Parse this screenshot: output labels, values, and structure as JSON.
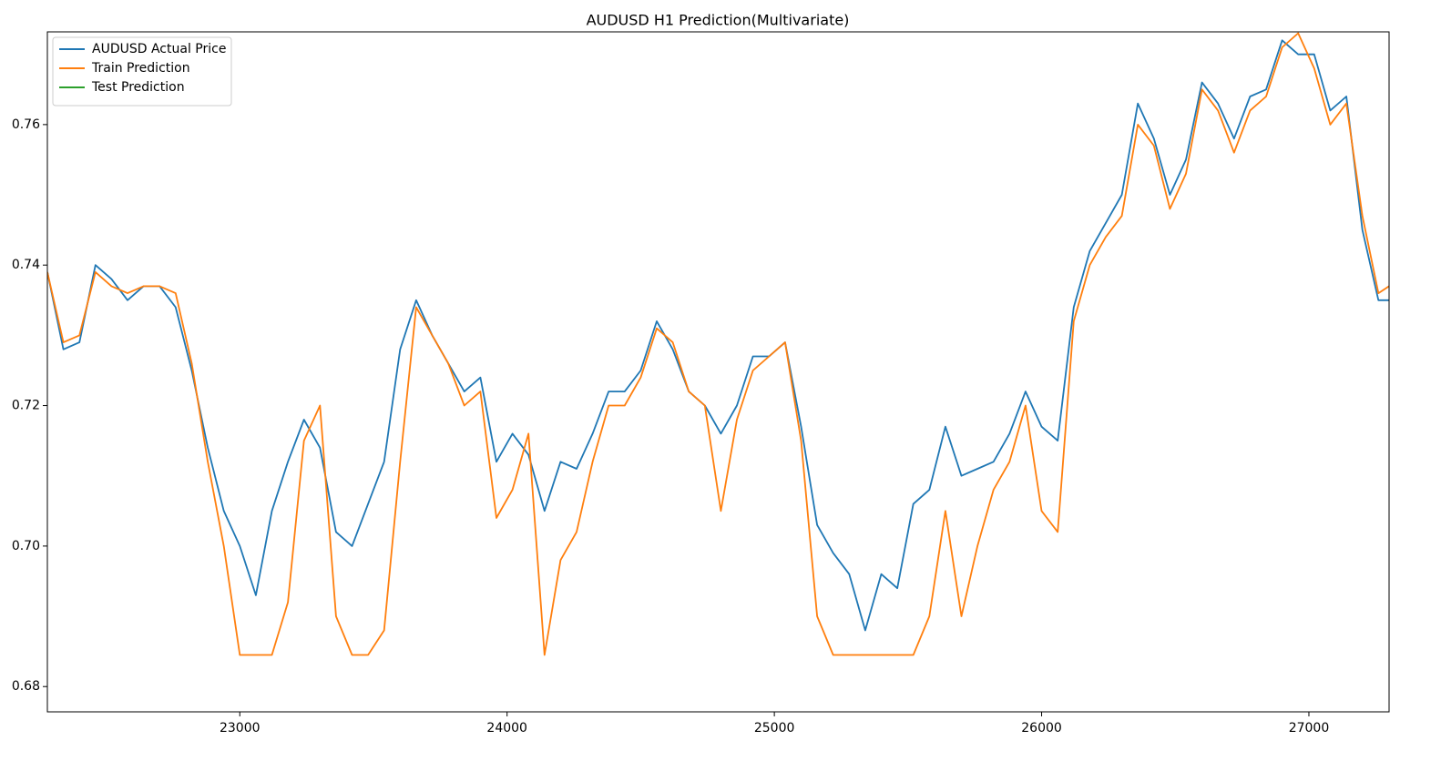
{
  "chart_data": {
    "type": "line",
    "title": "AUDUSD H1 Prediction(Multivariate)",
    "x": [
      22280,
      22340,
      22400,
      22460,
      22520,
      22580,
      22640,
      22700,
      22760,
      22820,
      22880,
      22940,
      23000,
      23060,
      23120,
      23180,
      23240,
      23300,
      23360,
      23420,
      23480,
      23540,
      23600,
      23660,
      23720,
      23780,
      23840,
      23900,
      23960,
      24020,
      24080,
      24140,
      24200,
      24260,
      24320,
      24380,
      24440,
      24500,
      24560,
      24620,
      24680,
      24740,
      24800,
      24860,
      24920,
      24980,
      25040,
      25100,
      25160,
      25220,
      25280,
      25340,
      25400,
      25460,
      25520,
      25580,
      25640,
      25700,
      25760,
      25820,
      25880,
      25940,
      26000,
      26060,
      26120,
      26180,
      26240,
      26300,
      26360,
      26420,
      26480,
      26540,
      26600,
      26660,
      26720,
      26780,
      26840,
      26900,
      26960,
      27020,
      27080,
      27140,
      27200,
      27260,
      27300
    ],
    "series": [
      {
        "name": "AUDUSD Actual Price",
        "color": "#1f77b4",
        "values": [
          0.739,
          0.728,
          0.729,
          0.74,
          0.738,
          0.735,
          0.737,
          0.737,
          0.734,
          0.725,
          0.714,
          0.705,
          0.7,
          0.693,
          0.705,
          0.712,
          0.718,
          0.714,
          0.702,
          0.7,
          0.706,
          0.712,
          0.728,
          0.735,
          0.73,
          0.726,
          0.722,
          0.724,
          0.712,
          0.716,
          0.713,
          0.705,
          0.712,
          0.711,
          0.716,
          0.722,
          0.722,
          0.725,
          0.732,
          0.728,
          0.722,
          0.72,
          0.716,
          0.72,
          0.727,
          0.727,
          0.729,
          0.717,
          0.703,
          0.699,
          0.696,
          0.688,
          0.696,
          0.694,
          0.706,
          0.708,
          0.717,
          0.71,
          0.711,
          0.712,
          0.716,
          0.722,
          0.717,
          0.715,
          0.734,
          0.742,
          0.746,
          0.75,
          0.763,
          0.758,
          0.75,
          0.755,
          0.766,
          0.763,
          0.758,
          0.764,
          0.765,
          0.772,
          0.77,
          0.77,
          0.762,
          0.764,
          0.745,
          0.735,
          0.735
        ]
      },
      {
        "name": "Train Prediction",
        "color": "#ff7f0e",
        "values": [
          0.739,
          0.729,
          0.73,
          0.739,
          0.737,
          0.736,
          0.737,
          0.737,
          0.736,
          0.726,
          0.712,
          0.7,
          0.6845,
          0.6845,
          0.6845,
          0.692,
          0.715,
          0.72,
          0.69,
          0.6845,
          0.6845,
          0.688,
          0.712,
          0.734,
          0.73,
          0.726,
          0.72,
          0.722,
          0.704,
          0.708,
          0.716,
          0.6845,
          0.698,
          0.702,
          0.712,
          0.72,
          0.72,
          0.724,
          0.731,
          0.729,
          0.722,
          0.72,
          0.705,
          0.718,
          0.725,
          0.727,
          0.729,
          0.715,
          0.69,
          0.6845,
          0.6845,
          0.6845,
          0.6845,
          0.6845,
          0.6845,
          0.69,
          0.705,
          0.69,
          0.7,
          0.708,
          0.712,
          0.72,
          0.705,
          0.702,
          0.732,
          0.74,
          0.744,
          0.747,
          0.76,
          0.757,
          0.748,
          0.753,
          0.765,
          0.762,
          0.756,
          0.762,
          0.764,
          0.771,
          0.773,
          0.768,
          0.76,
          0.763,
          0.747,
          0.736,
          0.737
        ]
      },
      {
        "name": "Test Prediction",
        "color": "#2ca02c",
        "values": [
          null,
          null,
          null,
          null,
          null,
          null,
          null,
          null,
          null,
          null,
          null,
          null,
          null,
          null,
          null,
          null,
          null,
          null,
          null,
          null,
          null,
          null,
          null,
          null,
          null,
          null,
          null,
          null,
          null,
          null,
          null,
          null,
          null,
          null,
          null,
          null,
          null,
          null,
          null,
          null,
          null,
          null,
          null,
          null,
          null,
          null,
          null,
          null,
          null,
          null,
          null,
          null,
          null,
          null,
          null,
          null,
          null,
          null,
          null,
          null,
          null,
          null,
          null,
          null,
          null,
          null,
          null,
          null,
          null,
          null,
          null,
          null,
          null,
          null,
          null,
          null,
          null,
          null,
          null,
          null,
          null,
          null,
          null,
          null,
          null
        ]
      }
    ],
    "xlim": [
      22280,
      27300
    ],
    "ylim": [
      0.6764,
      0.7732
    ],
    "xticks": [
      23000,
      24000,
      25000,
      26000,
      27000
    ],
    "yticks": [
      0.68,
      {
        "value": 0.7,
        "label": "0.70"
      },
      0.72,
      0.74,
      0.76
    ],
    "grid": false,
    "legend": "upper left"
  }
}
